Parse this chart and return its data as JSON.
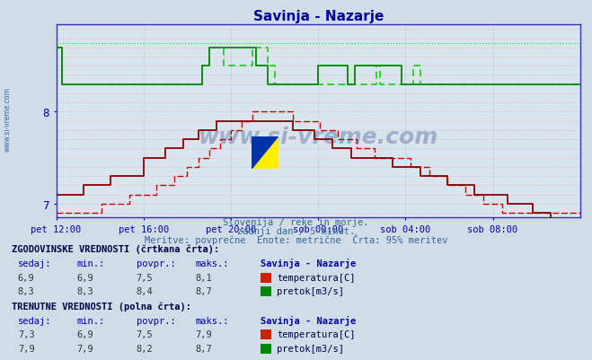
{
  "title": "Savinja - Nazarje",
  "title_color": "#000099",
  "bg_color": "#d0dce8",
  "plot_bg_color": "#d8e4ee",
  "xlabel_color": "#0000aa",
  "ylabel_color": "#0000aa",
  "subtitle_lines": [
    "Slovenija / reke in morje.",
    "zadnji dan / 5 minut.",
    "Meritve: povprečne  Enote: metrične  Črta: 95% meritev"
  ],
  "xlim": [
    0,
    288
  ],
  "ylim": [
    6.85,
    8.95
  ],
  "yticks": [
    7.0,
    8.0
  ],
  "xtick_labels": [
    "pet 12:00",
    "pet 16:00",
    "pet 20:00",
    "sob 00:00",
    "sob 04:00",
    "sob 08:00"
  ],
  "xtick_positions": [
    0,
    48,
    96,
    144,
    192,
    240
  ],
  "watermark": "www.si-vreme.com",
  "temp_hist_color": "#cc0000",
  "temp_solid_color": "#880000",
  "flow_hist_color": "#00cc00",
  "flow_solid_color": "#008800",
  "flow_top_color": "#00ff00",
  "grid_h_color": "#ffaaaa",
  "grid_v_color": "#aabbcc",
  "axis_color": "#0000cc",
  "spine_color": "#3333aa"
}
